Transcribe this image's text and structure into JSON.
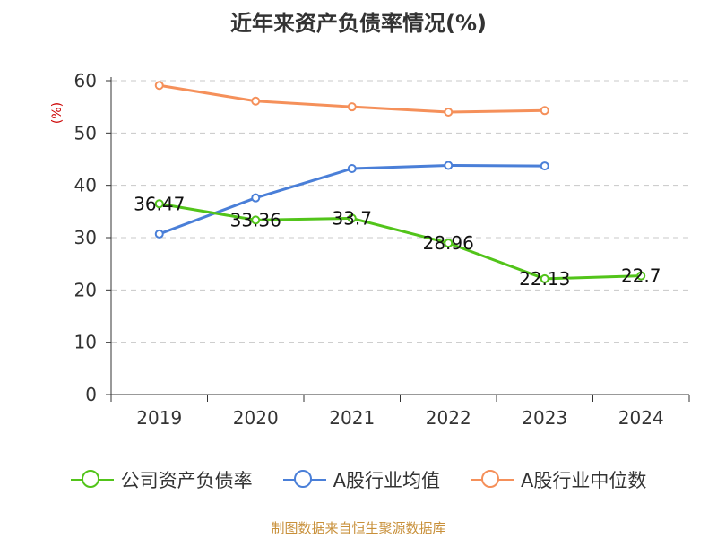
{
  "chart_data": {
    "type": "line",
    "title": "近年来资产负债率情况(%)",
    "ylabel": "(%)",
    "categories": [
      "2019",
      "2020",
      "2021",
      "2022",
      "2023",
      "2024"
    ],
    "ylim": [
      0,
      60
    ],
    "yticks": [
      0,
      10,
      20,
      30,
      40,
      50,
      60
    ],
    "grid": true,
    "legend_position": "bottom",
    "series": [
      {
        "name": "公司资产负债率",
        "color": "#52c41a",
        "values": [
          36.47,
          33.36,
          33.7,
          28.96,
          22.13,
          22.7
        ],
        "labels": [
          "36.47",
          "33.36",
          "33.7",
          "28.96",
          "22.13",
          "22.7"
        ]
      },
      {
        "name": "A股行业均值",
        "color": "#4a7fd8",
        "values": [
          30.7,
          37.6,
          43.2,
          43.8,
          43.7,
          null
        ]
      },
      {
        "name": "A股行业中位数",
        "color": "#f5905a",
        "values": [
          59.1,
          56.1,
          55.0,
          54.0,
          54.3,
          null
        ]
      }
    ]
  },
  "source": "制图数据来自恒生聚源数据库"
}
